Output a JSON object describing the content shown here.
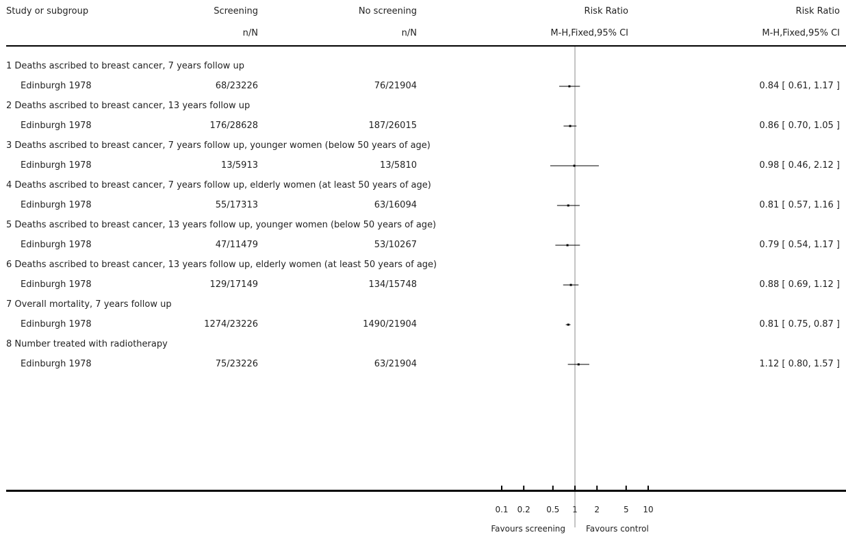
{
  "header": {
    "study_col": "Study or subgroup",
    "screening_col": "Screening",
    "no_screening_col": "No screening",
    "rr_plot_col": "Risk Ratio",
    "rr_text_col": "Risk Ratio",
    "screening_sub": "n/N",
    "no_screening_sub": "n/N",
    "rr_plot_sub": "M-H,Fixed,95% CI",
    "rr_text_sub": "M-H,Fixed,95% CI"
  },
  "rows": [
    {
      "group": "1 Deaths ascribed to breast cancer, 7 years follow up",
      "study": "Edinburgh 1978",
      "screening": "68/23226",
      "no_screening": "76/21904",
      "rr_text": "0.84 [ 0.61, 1.17 ]"
    },
    {
      "group": "2 Deaths ascribed to breast cancer, 13 years follow up",
      "study": "Edinburgh 1978",
      "screening": "176/28628",
      "no_screening": "187/26015",
      "rr_text": "0.86 [ 0.70, 1.05 ]"
    },
    {
      "group": "3 Deaths ascribed to breast cancer, 7 years follow up, younger women (below 50 years of age)",
      "study": "Edinburgh 1978",
      "screening": "13/5913",
      "no_screening": "13/5810",
      "rr_text": "0.98 [ 0.46, 2.12 ]"
    },
    {
      "group": "4 Deaths ascribed to breast cancer, 7 years follow up, elderly women (at least 50 years of age)",
      "study": "Edinburgh 1978",
      "screening": "55/17313",
      "no_screening": "63/16094",
      "rr_text": "0.81 [ 0.57, 1.16 ]"
    },
    {
      "group": "5 Deaths ascribed to breast cancer, 13 years follow up, younger women (below 50 years of age)",
      "study": "Edinburgh 1978",
      "screening": "47/11479",
      "no_screening": "53/10267",
      "rr_text": "0.79 [ 0.54, 1.17 ]"
    },
    {
      "group": "6 Deaths ascribed to breast cancer, 13 years follow up, elderly women (at least 50 years of age)",
      "study": "Edinburgh 1978",
      "screening": "129/17149",
      "no_screening": "134/15748",
      "rr_text": "0.88 [ 0.69, 1.12 ]"
    },
    {
      "group": "7 Overall mortality, 7 years follow up",
      "study": "Edinburgh 1978",
      "screening": "1274/23226",
      "no_screening": "1490/21904",
      "rr_text": "0.81 [ 0.75, 0.87 ]"
    },
    {
      "group": "8 Number treated with radiotherapy",
      "study": "Edinburgh 1978",
      "screening": "75/23226",
      "no_screening": "63/21904",
      "rr_text": "1.12 [ 0.80, 1.57 ]"
    }
  ],
  "chart_data": {
    "type": "forest",
    "scale": "log",
    "null_value": 1,
    "x_ticks": [
      0.1,
      0.2,
      0.5,
      1,
      2,
      5,
      10
    ],
    "x_tick_labels": [
      "0.1",
      "0.2",
      "0.5",
      "1",
      "2",
      "5",
      "10"
    ],
    "favours_left": "Favours screening",
    "favours_right": "Favours control",
    "estimates": [
      {
        "rr": 0.84,
        "lo": 0.61,
        "hi": 1.17
      },
      {
        "rr": 0.86,
        "lo": 0.7,
        "hi": 1.05
      },
      {
        "rr": 0.98,
        "lo": 0.46,
        "hi": 2.12
      },
      {
        "rr": 0.81,
        "lo": 0.57,
        "hi": 1.16
      },
      {
        "rr": 0.79,
        "lo": 0.54,
        "hi": 1.17
      },
      {
        "rr": 0.88,
        "lo": 0.69,
        "hi": 1.12
      },
      {
        "rr": 0.81,
        "lo": 0.75,
        "hi": 0.87
      },
      {
        "rr": 1.12,
        "lo": 0.8,
        "hi": 1.57
      }
    ]
  }
}
